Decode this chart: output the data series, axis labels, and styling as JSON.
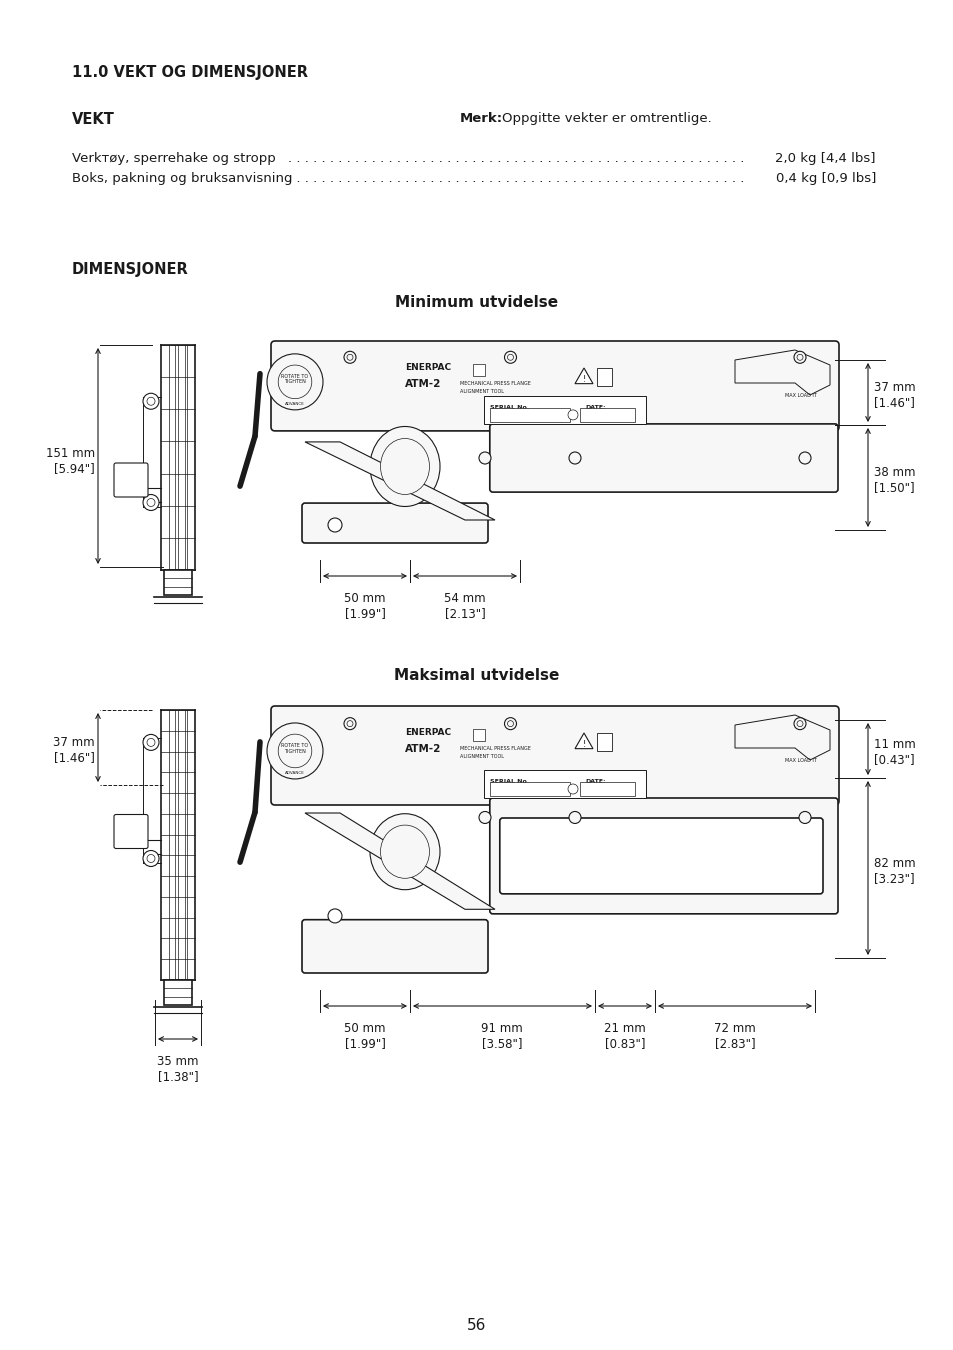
{
  "title_section": "11.0 VEKT OG DIMENSJONER",
  "weight_heading": "VEKT",
  "note_bold": "Merk:",
  "note_text": " Oppgitte vekter er omtrentlige.",
  "weight_item1_left": "Verkтøy, sperrehake og stropp",
  "weight_item1_right": "2,0 kg [4,4 lbs]",
  "weight_item2_left": "Boks, pakning og bruksanvisning",
  "weight_item2_right": "0,4 kg [0,9 lbs]",
  "dim_heading": "DIMENSJONER",
  "min_title": "Minimum utvidelse",
  "max_title": "Maksimal utvidelse",
  "page_number": "56",
  "bg_color": "#ffffff",
  "text_color": "#1a1a1a"
}
